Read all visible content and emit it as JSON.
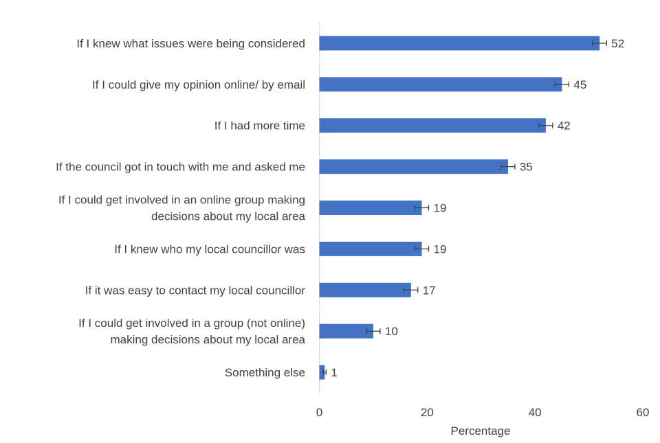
{
  "chart_data": {
    "type": "bar",
    "orientation": "horizontal",
    "categories": [
      [
        "If I knew what issues were being considered"
      ],
      [
        "If I could give my opinion online/ by email"
      ],
      [
        "If I had more time"
      ],
      [
        "If the council got in touch with me and asked me"
      ],
      [
        "If I could get involved in an online group making",
        "decisions about my local area"
      ],
      [
        "If I knew who my local councillor was"
      ],
      [
        "If it was easy to contact my local councillor"
      ],
      [
        "If I could get involved in a group (not online)",
        "making decisions about my local area"
      ],
      [
        "Something else"
      ]
    ],
    "values": [
      52,
      45,
      42,
      35,
      19,
      19,
      17,
      10,
      1
    ],
    "data_labels": [
      "52",
      "45",
      "42",
      "35",
      "19",
      "19",
      "17",
      "10",
      "1"
    ],
    "error_bars": true,
    "xlabel": "Percentage",
    "ylabel": "",
    "xlim": [
      0,
      60
    ],
    "xticks": [
      "0",
      "20",
      "40",
      "60"
    ],
    "grid": false,
    "bar_color": "#4472C4",
    "error_bar_color": "#404040"
  }
}
